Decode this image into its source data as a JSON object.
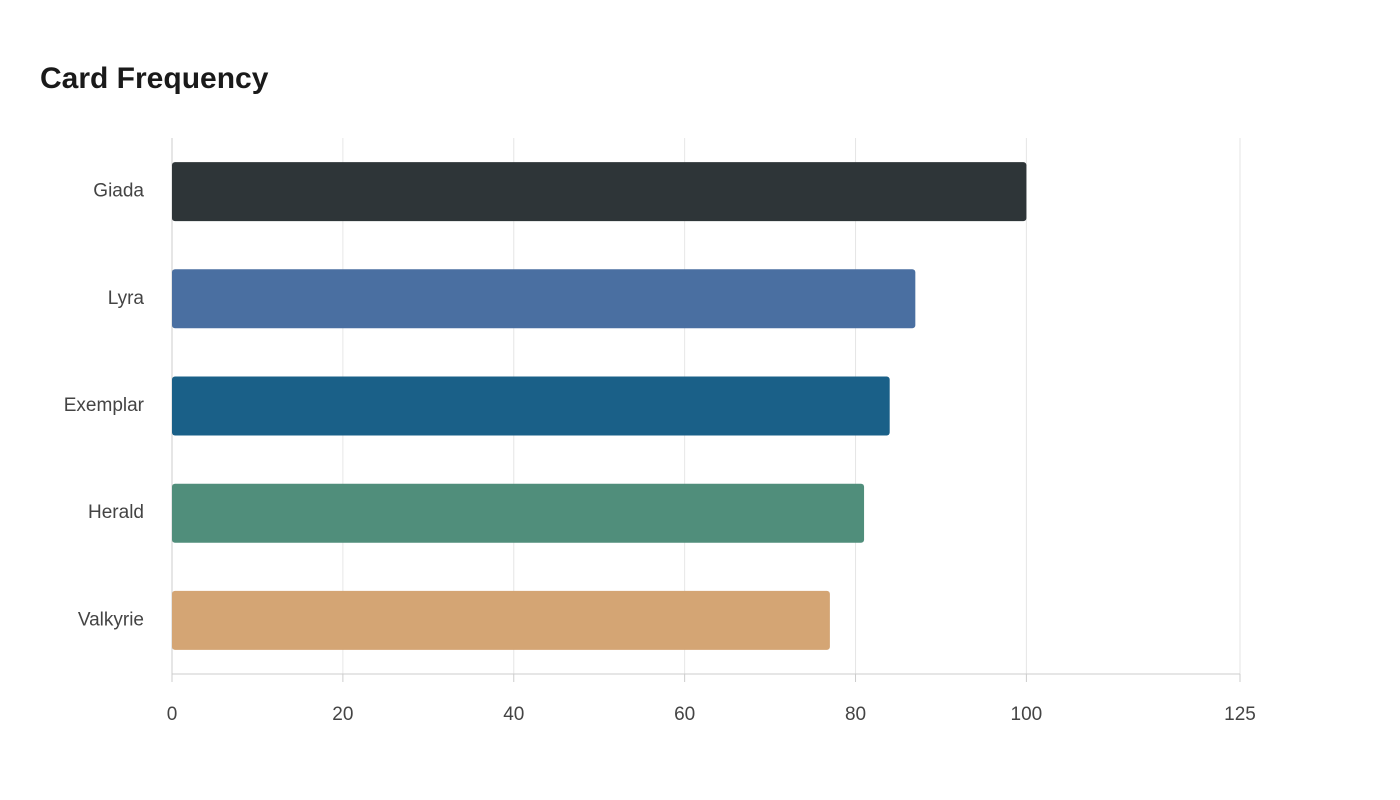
{
  "chart_data": {
    "type": "bar",
    "orientation": "horizontal",
    "title": "Card Frequency",
    "categories": [
      "Giada",
      "Lyra",
      "Exemplar",
      "Herald",
      "Valkyrie"
    ],
    "values": [
      100,
      87,
      84,
      81,
      77
    ],
    "colors": [
      "#2e3538",
      "#4a6fa1",
      "#1a6088",
      "#508e7b",
      "#d4a574"
    ],
    "xlim": [
      0,
      125
    ],
    "xticks": [
      0,
      20,
      40,
      60,
      80,
      100,
      125
    ],
    "grid": true
  }
}
